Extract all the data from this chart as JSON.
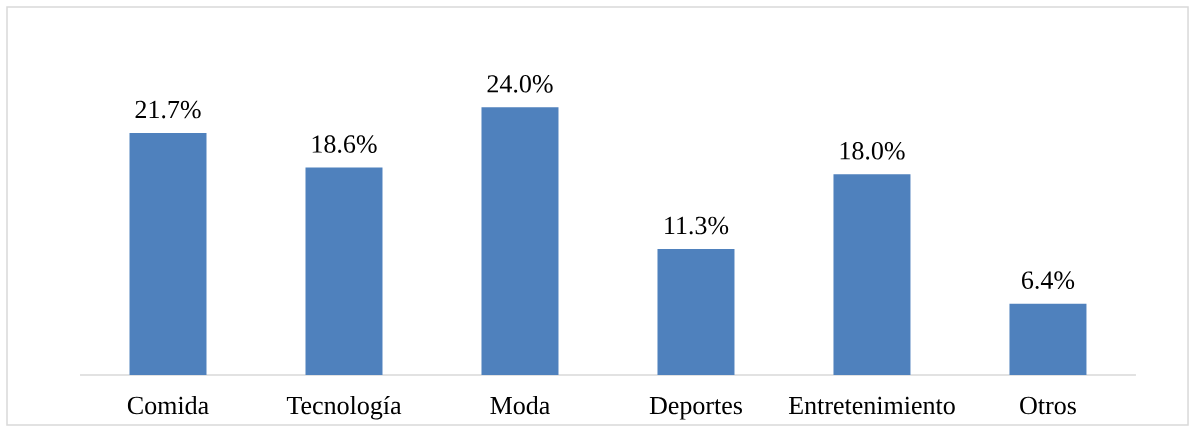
{
  "chart_data": {
    "type": "bar",
    "categories": [
      "Comida",
      "Tecnología",
      "Moda",
      "Deportes",
      "Entretenimiento",
      "Otros"
    ],
    "values": [
      21.7,
      18.6,
      24.0,
      11.3,
      18.0,
      6.4
    ],
    "color": "#4f81bd",
    "value_labels": [
      "21.7%",
      "18.6%",
      "24.0%",
      "11.3%",
      "18.0%",
      "6.4%"
    ]
  }
}
